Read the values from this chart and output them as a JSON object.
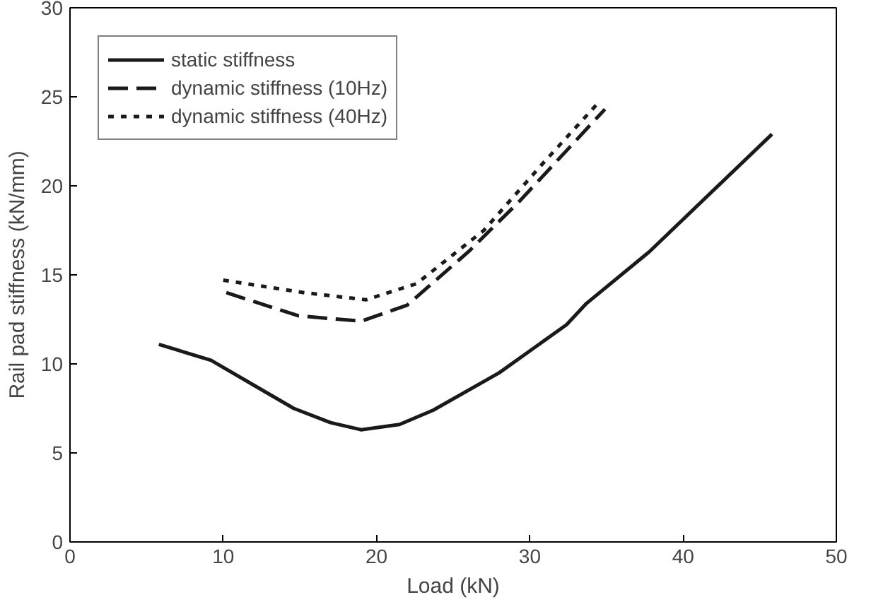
{
  "chart_data": {
    "type": "line",
    "xlabel": "Load (kN)",
    "ylabel": "Rail pad stiffness (kN/mm)",
    "xlim": [
      0,
      50
    ],
    "ylim": [
      0,
      30
    ],
    "xticks": [
      0,
      10,
      20,
      30,
      40,
      50
    ],
    "yticks": [
      0,
      5,
      10,
      15,
      20,
      25,
      30
    ],
    "grid": false,
    "legend": "top left",
    "series": [
      {
        "name": "static stiffness",
        "color": "#1a1a1a",
        "line_style": "solid",
        "x": [
          5.8,
          9.2,
          12,
          14.6,
          17,
          19,
          21.5,
          23.7,
          28,
          32.4,
          33.7,
          37.8,
          45.8
        ],
        "values": [
          11.1,
          10.2,
          8.8,
          7.5,
          6.7,
          6.3,
          6.6,
          7.4,
          9.5,
          12.2,
          13.4,
          16.3,
          22.9
        ]
      },
      {
        "name": "dynamic stiffness (10Hz)",
        "color": "#1a1a1a",
        "line_style": "dashed",
        "x": [
          10.2,
          14.9,
          19,
          22,
          26,
          29.4,
          34.9
        ],
        "values": [
          14.0,
          12.7,
          12.4,
          13.3,
          16.3,
          19.2,
          24.3
        ]
      },
      {
        "name": "dynamic stiffness (40Hz)",
        "color": "#1a1a1a",
        "line_style": "dotted",
        "x": [
          10.0,
          15.3,
          19.3,
          22.6,
          27,
          31,
          34.4
        ],
        "values": [
          14.7,
          14.0,
          13.6,
          14.5,
          17.5,
          21.4,
          24.6
        ]
      }
    ]
  }
}
